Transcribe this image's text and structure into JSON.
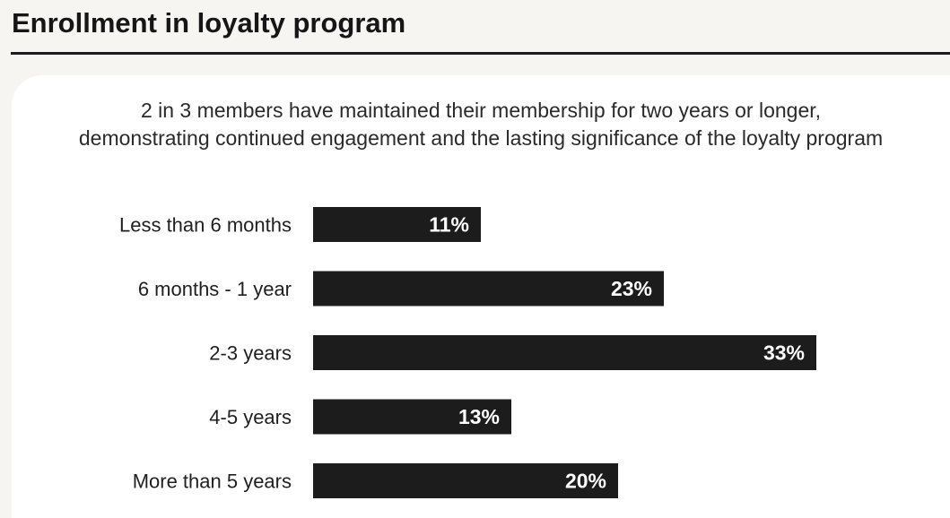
{
  "header": {
    "title": "Enrollment in loyalty program"
  },
  "chart_data": {
    "type": "bar",
    "orientation": "horizontal",
    "subtitle": [
      "2 in 3 members have maintained their membership for two years or longer,",
      "demonstrating continued engagement and the lasting significance of the loyalty program"
    ],
    "categories": [
      "Less than 6 months",
      "6 months - 1 year",
      "2-3 years",
      "4-5 years",
      "More than 5 years"
    ],
    "values": [
      11,
      23,
      33,
      13,
      20
    ],
    "value_labels": [
      "11%",
      "23%",
      "33%",
      "13%",
      "20%"
    ],
    "unit": "%",
    "xlim": [
      0,
      33
    ],
    "grid": false,
    "legend": "none",
    "bar_color": "#1c1c1c",
    "label_color": "#ffffff"
  }
}
